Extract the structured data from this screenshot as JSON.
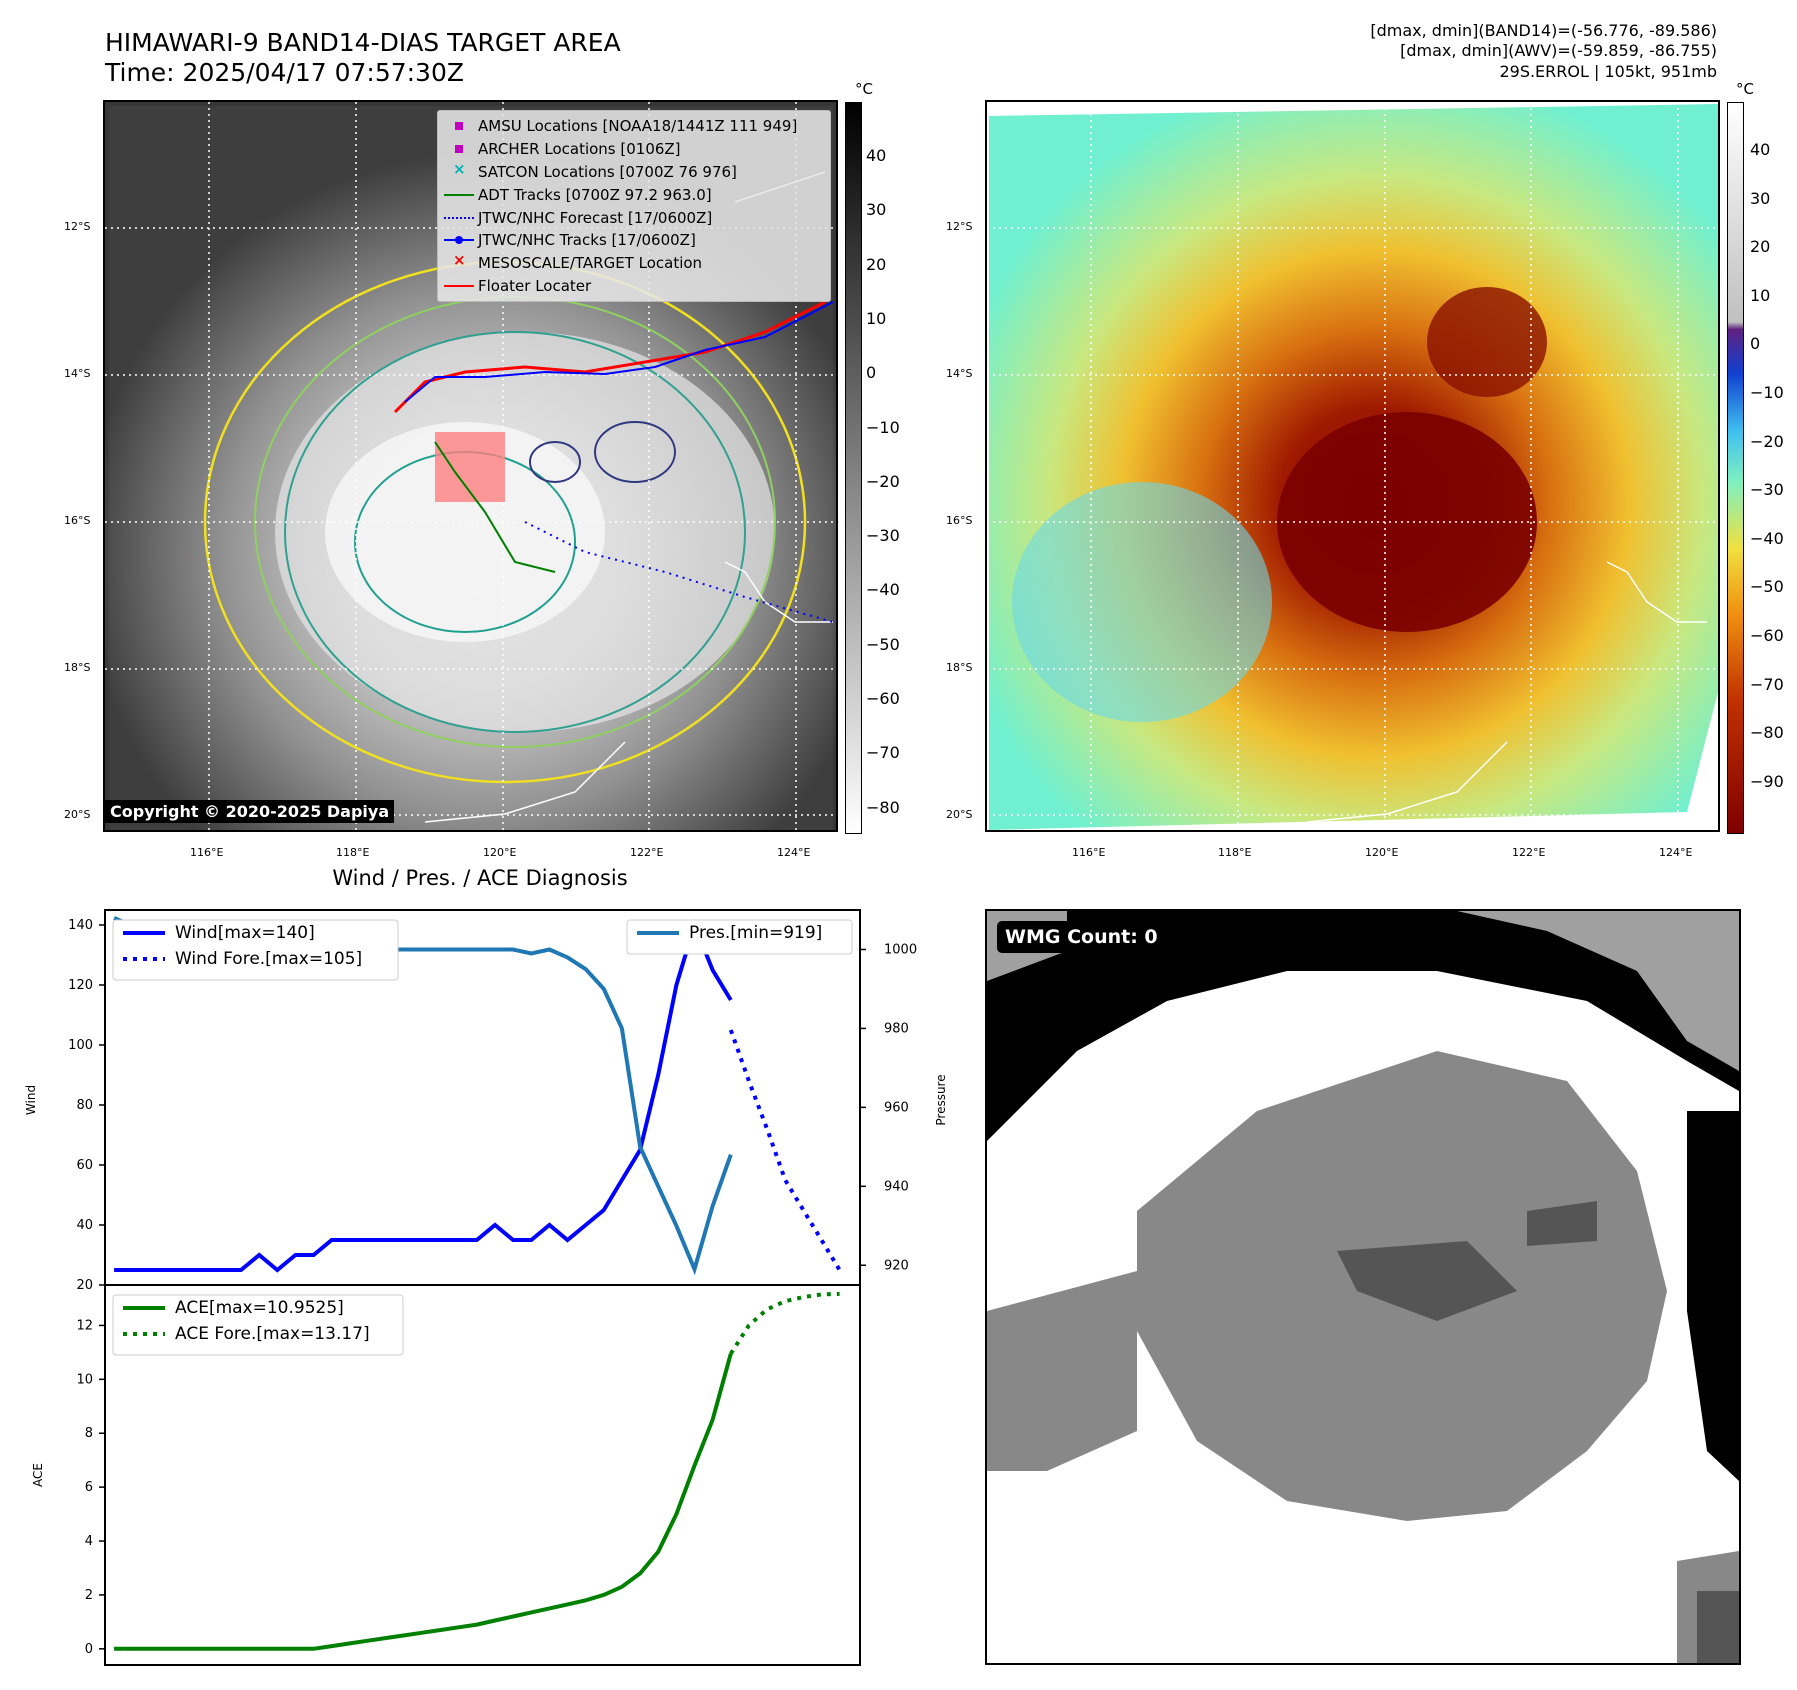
{
  "header": {
    "title_line1": "HIMAWARI-9 BAND14-DIAS TARGET AREA",
    "title_line2": "Time: 2025/04/17 07:57:30Z",
    "meta_line1": "[dmax, dmin](BAND14)=(-56.776, -89.586)",
    "meta_line2": "[dmax, dmin](AWV)=(-59.859, -86.755)",
    "meta_line3": "29S.ERROL | 105kt, 951mb"
  },
  "map": {
    "lat_labels": [
      "12°S",
      "14°S",
      "16°S",
      "18°S",
      "20°S"
    ],
    "lon_labels": [
      "116°E",
      "118°E",
      "120°E",
      "122°E",
      "124°E"
    ],
    "copyright": "Copyright © 2020-2025 Dapiya",
    "legend": [
      {
        "label": "AMSU Locations [NOAA18/1441Z 111 949]",
        "symbol": "square",
        "color": "#c000c0"
      },
      {
        "label": "ARCHER Locations [0106Z]",
        "symbol": "square",
        "color": "#c000c0"
      },
      {
        "label": "SATCON Locations [0700Z 76 976]",
        "symbol": "x",
        "color": "#00b0b0"
      },
      {
        "label": "ADT Tracks [0700Z 97.2 963.0]",
        "symbol": "line",
        "color": "#008000"
      },
      {
        "label": "JTWC/NHC Forecast [17/0600Z]",
        "symbol": "dotted",
        "color": "#0000ff"
      },
      {
        "label": "JTWC/NHC Tracks [17/0600Z]",
        "symbol": "line-dot",
        "color": "#0000ff"
      },
      {
        "label": "MESOSCALE/TARGET Location",
        "symbol": "x",
        "color": "#ff0000"
      },
      {
        "label": "Floater Locater",
        "symbol": "line",
        "color": "#ff0000"
      }
    ]
  },
  "colorbar_gray": {
    "unit": "°C",
    "ticks": [
      "40",
      "30",
      "20",
      "10",
      "0",
      "−10",
      "−20",
      "−30",
      "−40",
      "−50",
      "−60",
      "−70",
      "−80"
    ]
  },
  "colorbar_color": {
    "unit": "°C",
    "ticks": [
      "40",
      "30",
      "20",
      "10",
      "0",
      "−10",
      "−20",
      "−30",
      "−40",
      "−50",
      "−60",
      "−70",
      "−80",
      "−90"
    ]
  },
  "wmg": {
    "label": "WMG Count: 0"
  },
  "colors": {
    "wind": "#0000ff",
    "pressure": "#1f77b4",
    "ace": "#008000"
  },
  "chart_data": [
    {
      "type": "line",
      "title": "Wind / Pres. / ACE Diagnosis",
      "ylabel": "Wind",
      "y2label": "Pressure",
      "ylim": [
        20,
        145
      ],
      "y2lim": [
        915,
        1010
      ],
      "yticks": [
        "140",
        "120",
        "100",
        "80",
        "60",
        "40",
        "20"
      ],
      "y2ticks": [
        "1000",
        "980",
        "960",
        "940",
        "920"
      ],
      "legend_left": [
        "Wind[max=140]",
        "Wind Fore.[max=105]"
      ],
      "legend_right": [
        "Pres.[min=919]"
      ],
      "series": [
        {
          "name": "Wind[max=140]",
          "axis": "left",
          "style": "solid",
          "x": [
            0,
            1,
            2,
            3,
            4,
            5,
            6,
            7,
            8,
            9,
            10,
            11,
            12,
            13,
            14,
            15,
            16,
            17,
            18,
            19,
            20,
            21,
            22,
            23,
            24,
            25,
            26,
            27,
            28,
            29,
            30,
            31,
            32,
            33,
            34
          ],
          "values": [
            25,
            25,
            25,
            25,
            25,
            25,
            25,
            25,
            30,
            25,
            30,
            30,
            35,
            35,
            35,
            35,
            35,
            35,
            35,
            35,
            35,
            40,
            35,
            35,
            40,
            35,
            40,
            45,
            55,
            65,
            90,
            120,
            140,
            125,
            115
          ]
        },
        {
          "name": "Wind Fore.[max=105]",
          "axis": "left",
          "style": "dotted",
          "x": [
            34,
            35,
            36,
            37,
            38,
            39,
            40
          ],
          "values": [
            105,
            88,
            72,
            55,
            45,
            35,
            25
          ]
        },
        {
          "name": "Pres.[min=919]",
          "axis": "right",
          "x": [
            0,
            1,
            2,
            3,
            4,
            5,
            6,
            7,
            8,
            9,
            10,
            11,
            12,
            13,
            14,
            15,
            16,
            17,
            18,
            19,
            20,
            21,
            22,
            23,
            24,
            25,
            26,
            27,
            28,
            29,
            30,
            31,
            32,
            33,
            34
          ],
          "values": [
            1008,
            1006,
            1006,
            1004,
            1001,
            1000,
            999,
            1000,
            1000,
            1000,
            1000,
            1000,
            1000,
            1000,
            1000,
            1000,
            1000,
            1000,
            1000,
            1000,
            1000,
            1000,
            1000,
            999,
            1000,
            998,
            995,
            990,
            980,
            950,
            940,
            930,
            919,
            935,
            948
          ]
        }
      ]
    },
    {
      "type": "line",
      "ylabel": "ACE",
      "ylim": [
        -0.6,
        13.5
      ],
      "yticks": [
        "12",
        "10",
        "8",
        "6",
        "4",
        "2",
        "0"
      ],
      "legend": [
        "ACE[max=10.9525]",
        "ACE Fore.[max=13.17]"
      ],
      "series": [
        {
          "name": "ACE[max=10.9525]",
          "style": "solid",
          "x": [
            0,
            1,
            2,
            3,
            4,
            5,
            6,
            7,
            8,
            9,
            10,
            11,
            12,
            13,
            14,
            15,
            16,
            17,
            18,
            19,
            20,
            21,
            22,
            23,
            24,
            25,
            26,
            27,
            28,
            29,
            30,
            31,
            32,
            33,
            34
          ],
          "values": [
            0,
            0,
            0,
            0,
            0,
            0,
            0,
            0,
            0,
            0,
            0,
            0,
            0.1,
            0.2,
            0.3,
            0.4,
            0.5,
            0.6,
            0.7,
            0.8,
            0.9,
            1.05,
            1.2,
            1.35,
            1.5,
            1.65,
            1.8,
            2.0,
            2.3,
            2.8,
            3.6,
            5.0,
            6.8,
            8.5,
            10.95
          ]
        },
        {
          "name": "ACE Fore.[max=13.17]",
          "style": "dotted",
          "x": [
            34,
            35,
            36,
            37,
            38,
            39,
            40
          ],
          "values": [
            10.95,
            12.0,
            12.6,
            12.9,
            13.05,
            13.15,
            13.17
          ]
        }
      ]
    }
  ]
}
